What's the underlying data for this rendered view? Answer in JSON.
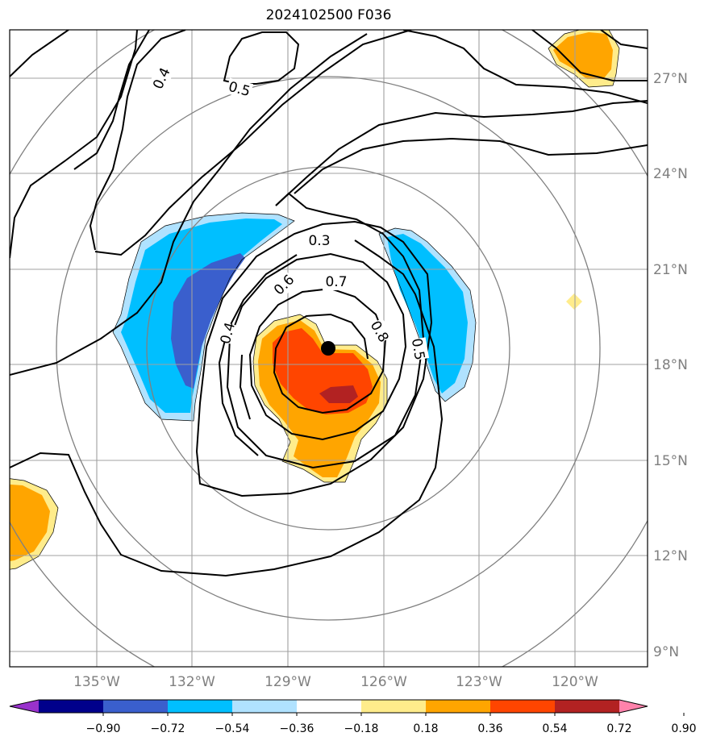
{
  "title": "2024102500 F036",
  "map": {
    "lon_ticks": [
      {
        "value": -135,
        "label": "135°W"
      },
      {
        "value": -132,
        "label": "132°W"
      },
      {
        "value": -129,
        "label": "129°W"
      },
      {
        "value": -126,
        "label": "126°W"
      },
      {
        "value": -123,
        "label": "123°W"
      },
      {
        "value": -120,
        "label": "120°W"
      }
    ],
    "lat_ticks": [
      {
        "value": 9,
        "label": "9°N"
      },
      {
        "value": 12,
        "label": "12°N"
      },
      {
        "value": 15,
        "label": "15°N"
      },
      {
        "value": 18,
        "label": "18°N"
      },
      {
        "value": 21,
        "label": "21°N"
      },
      {
        "value": 24,
        "label": "24°N"
      },
      {
        "value": 27,
        "label": "27°N"
      }
    ],
    "storm_center": {
      "lon": -127.8,
      "lat": 18.5
    },
    "contour_labels": [
      "0.3",
      "0.4",
      "0.4",
      "0.5",
      "0.5",
      "0.6",
      "0.7",
      "0.8"
    ]
  },
  "colorbar": {
    "ticks": [
      "−0.90",
      "−0.72",
      "−0.54",
      "−0.36",
      "−0.18",
      "0.18",
      "0.36",
      "0.54",
      "0.72",
      "0.90"
    ],
    "colors": [
      "#9932cc",
      "#00008b",
      "#3a5fcd",
      "#00bfff",
      "#b0e2ff",
      "#ffffff",
      "#ffec8b",
      "#ffa500",
      "#ff4500",
      "#b22222",
      "#ff82ab"
    ]
  }
}
